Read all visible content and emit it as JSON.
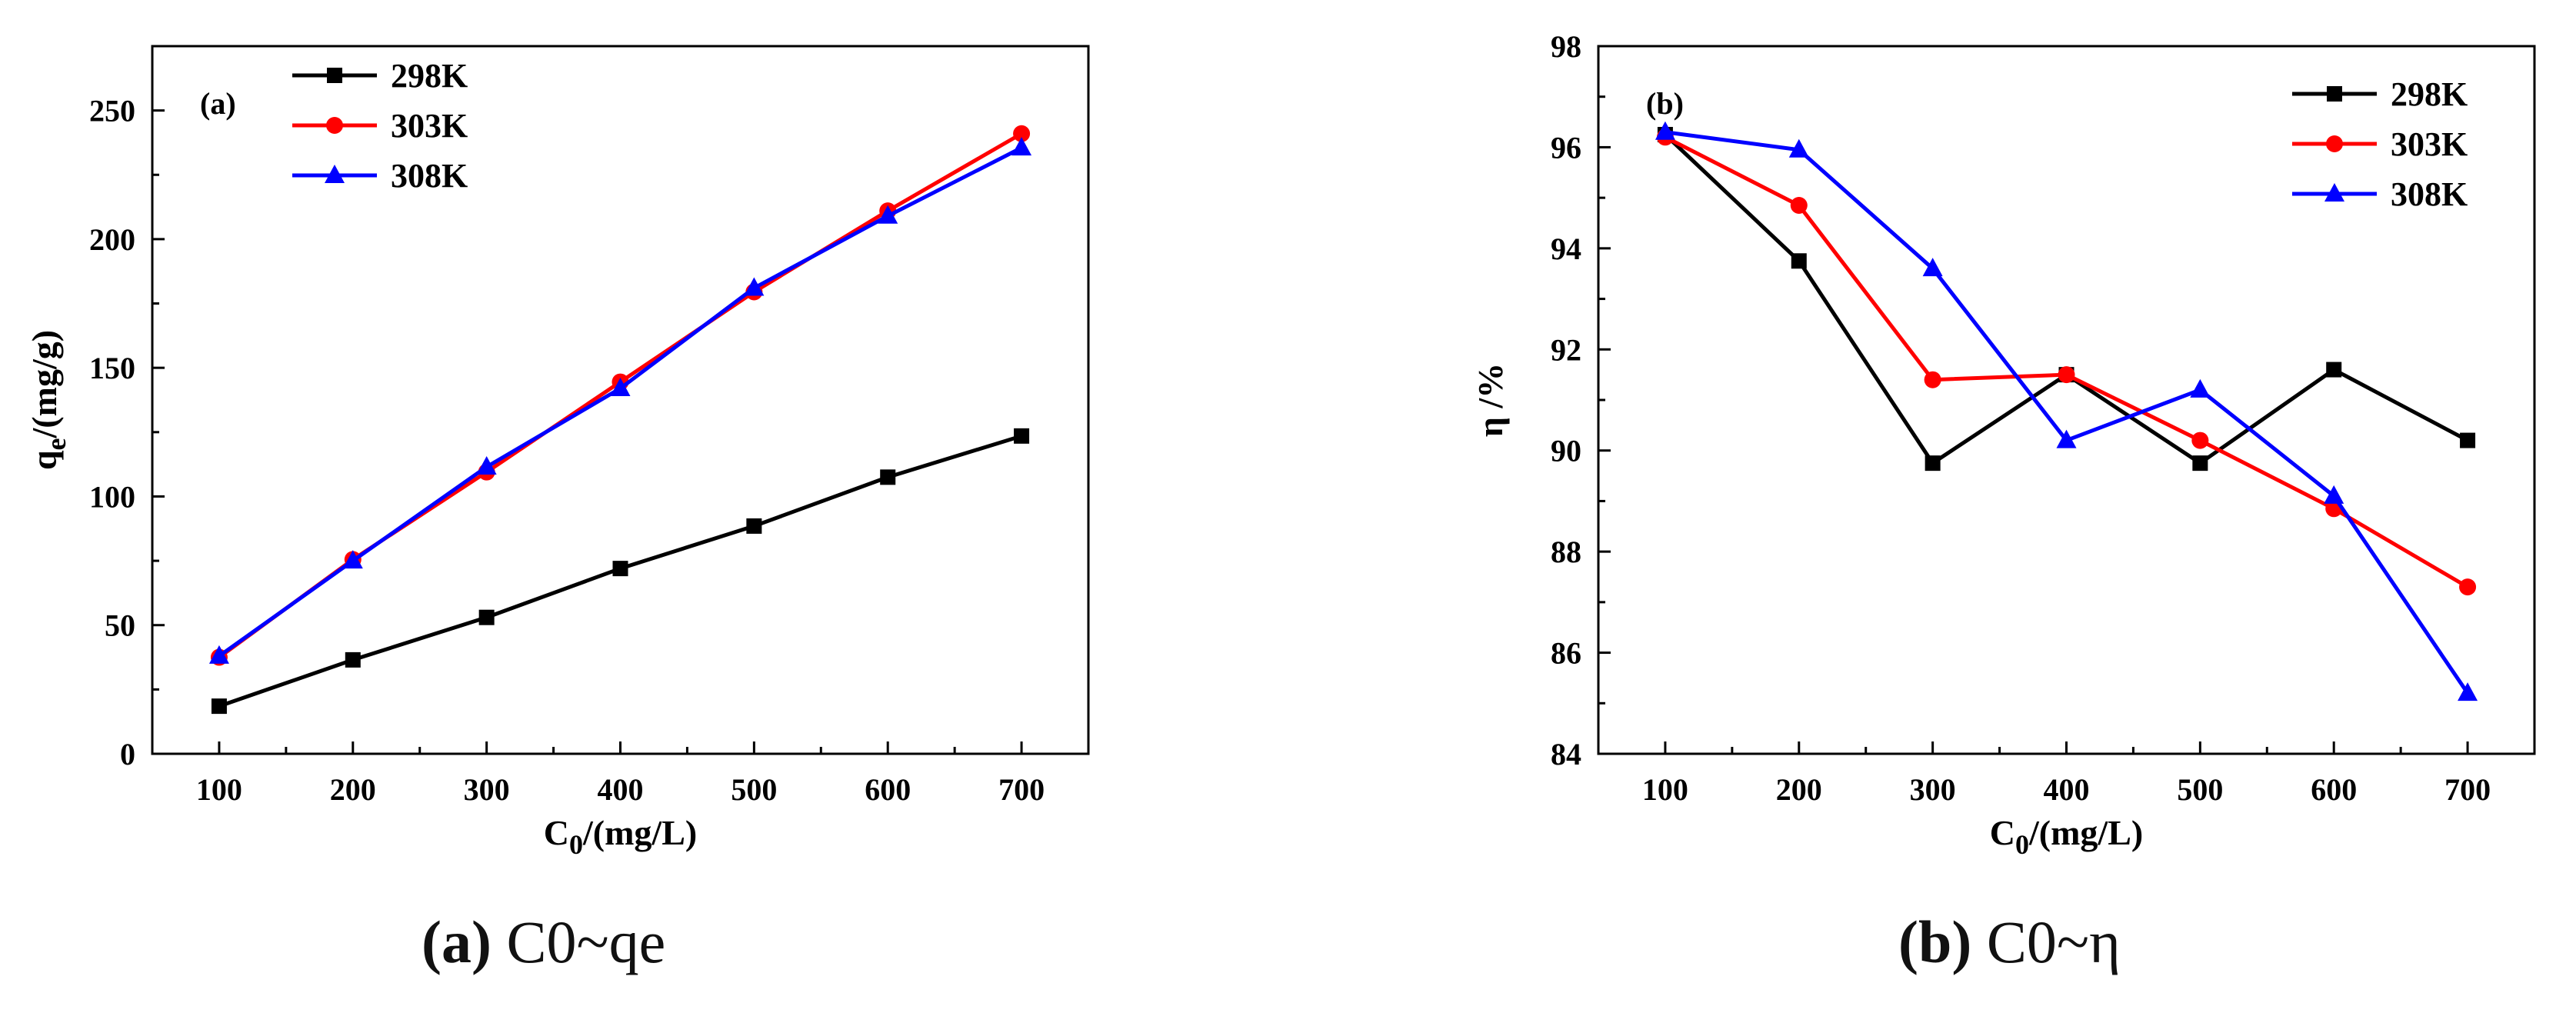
{
  "chart_data": [
    {
      "type": "line",
      "panel_label": "(a)",
      "title": "",
      "xlabel": "C0/(mg/L)",
      "xlabel_main": "C",
      "xlabel_sub": "0",
      "xlabel_rest": "/(mg/L)",
      "ylabel": "qe/(mg/g)",
      "ylabel_main": "q",
      "ylabel_sub": "e",
      "ylabel_rest": "/(mg/g)",
      "x": [
        100,
        200,
        300,
        400,
        500,
        600,
        700
      ],
      "xlim": [
        50,
        750
      ],
      "ylim": [
        0,
        275
      ],
      "xticks": [
        100,
        200,
        300,
        400,
        500,
        600,
        700
      ],
      "yticks": [
        0,
        50,
        100,
        150,
        200,
        250
      ],
      "legend_position": "top-left",
      "series": [
        {
          "name": "298K",
          "color": "#000000",
          "marker": "square",
          "values": [
            18.5,
            36.5,
            53,
            72,
            88.5,
            107.5,
            123.5
          ]
        },
        {
          "name": "303K",
          "color": "#ff0000",
          "marker": "circle",
          "values": [
            37.5,
            75.5,
            109.5,
            144.5,
            179.5,
            211,
            241
          ]
        },
        {
          "name": "308K",
          "color": "#0000ff",
          "marker": "triangle",
          "values": [
            38,
            75,
            111.5,
            142,
            181,
            209,
            235.5
          ]
        }
      ],
      "caption_label": "(a)",
      "caption_text": "C0~qe"
    },
    {
      "type": "line",
      "panel_label": "(b)",
      "title": "",
      "xlabel": "C0/(mg/L)",
      "xlabel_main": "C",
      "xlabel_sub": "0",
      "xlabel_rest": "/(mg/L)",
      "ylabel": "η /%",
      "x": [
        100,
        200,
        300,
        400,
        500,
        600,
        700
      ],
      "xlim": [
        50,
        750
      ],
      "ylim": [
        84,
        98
      ],
      "xticks": [
        100,
        200,
        300,
        400,
        500,
        600,
        700
      ],
      "yticks": [
        84,
        86,
        88,
        90,
        92,
        94,
        96,
        98
      ],
      "legend_position": "top-right",
      "series": [
        {
          "name": "298K",
          "color": "#000000",
          "marker": "square",
          "values": [
            96.25,
            93.75,
            89.75,
            91.5,
            89.75,
            91.6,
            90.2
          ]
        },
        {
          "name": "303K",
          "color": "#ff0000",
          "marker": "circle",
          "values": [
            96.2,
            94.85,
            91.4,
            91.5,
            90.2,
            88.85,
            87.3
          ]
        },
        {
          "name": "308K",
          "color": "#0000ff",
          "marker": "triangle",
          "values": [
            96.3,
            95.95,
            93.6,
            90.2,
            91.2,
            89.1,
            85.2
          ]
        }
      ],
      "caption_label": "(b)",
      "caption_text": "C0~η"
    }
  ]
}
